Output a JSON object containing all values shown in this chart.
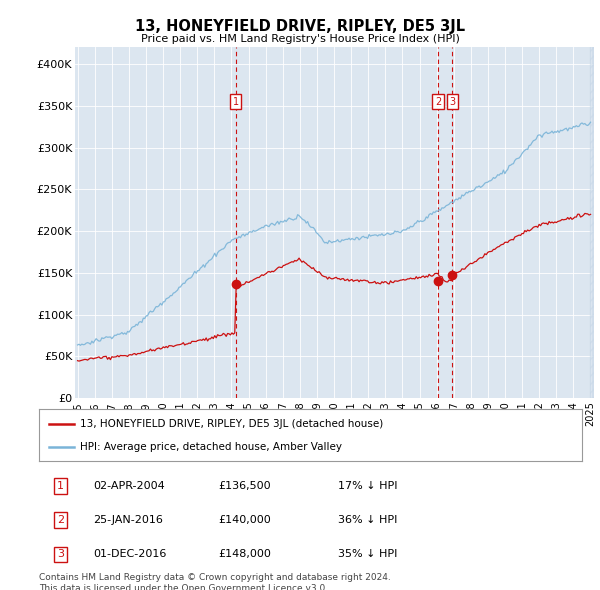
{
  "title": "13, HONEYFIELD DRIVE, RIPLEY, DE5 3JL",
  "subtitle": "Price paid vs. HM Land Registry's House Price Index (HPI)",
  "background_color": "#dce9f5",
  "plot_bg_color": "#dce6f0",
  "red_line_label": "13, HONEYFIELD DRIVE, RIPLEY, DE5 3JL (detached house)",
  "blue_line_label": "HPI: Average price, detached house, Amber Valley",
  "footnote": "Contains HM Land Registry data © Crown copyright and database right 2024.\nThis data is licensed under the Open Government Licence v3.0.",
  "transactions": [
    {
      "num": 1,
      "date": "02-APR-2004",
      "price": "£136,500",
      "hpi": "17% ↓ HPI",
      "year": 2004.25,
      "price_val": 136500
    },
    {
      "num": 2,
      "date": "25-JAN-2016",
      "price": "£140,000",
      "hpi": "36% ↓ HPI",
      "year": 2016.08,
      "price_val": 140000
    },
    {
      "num": 3,
      "date": "01-DEC-2016",
      "price": "£148,000",
      "hpi": "35% ↓ HPI",
      "year": 2016.92,
      "price_val": 148000
    }
  ],
  "ylim": [
    0,
    420000
  ],
  "yticks": [
    0,
    50000,
    100000,
    150000,
    200000,
    250000,
    300000,
    350000,
    400000
  ],
  "ytick_labels": [
    "£0",
    "£50K",
    "£100K",
    "£150K",
    "£200K",
    "£250K",
    "£300K",
    "£350K",
    "£400K"
  ],
  "hpi_color": "#7ab4d8",
  "price_color": "#cc1111",
  "vline_color": "#cc1111",
  "box_color": "#cc1111",
  "xmin": 1995.0,
  "xmax": 2025.2
}
